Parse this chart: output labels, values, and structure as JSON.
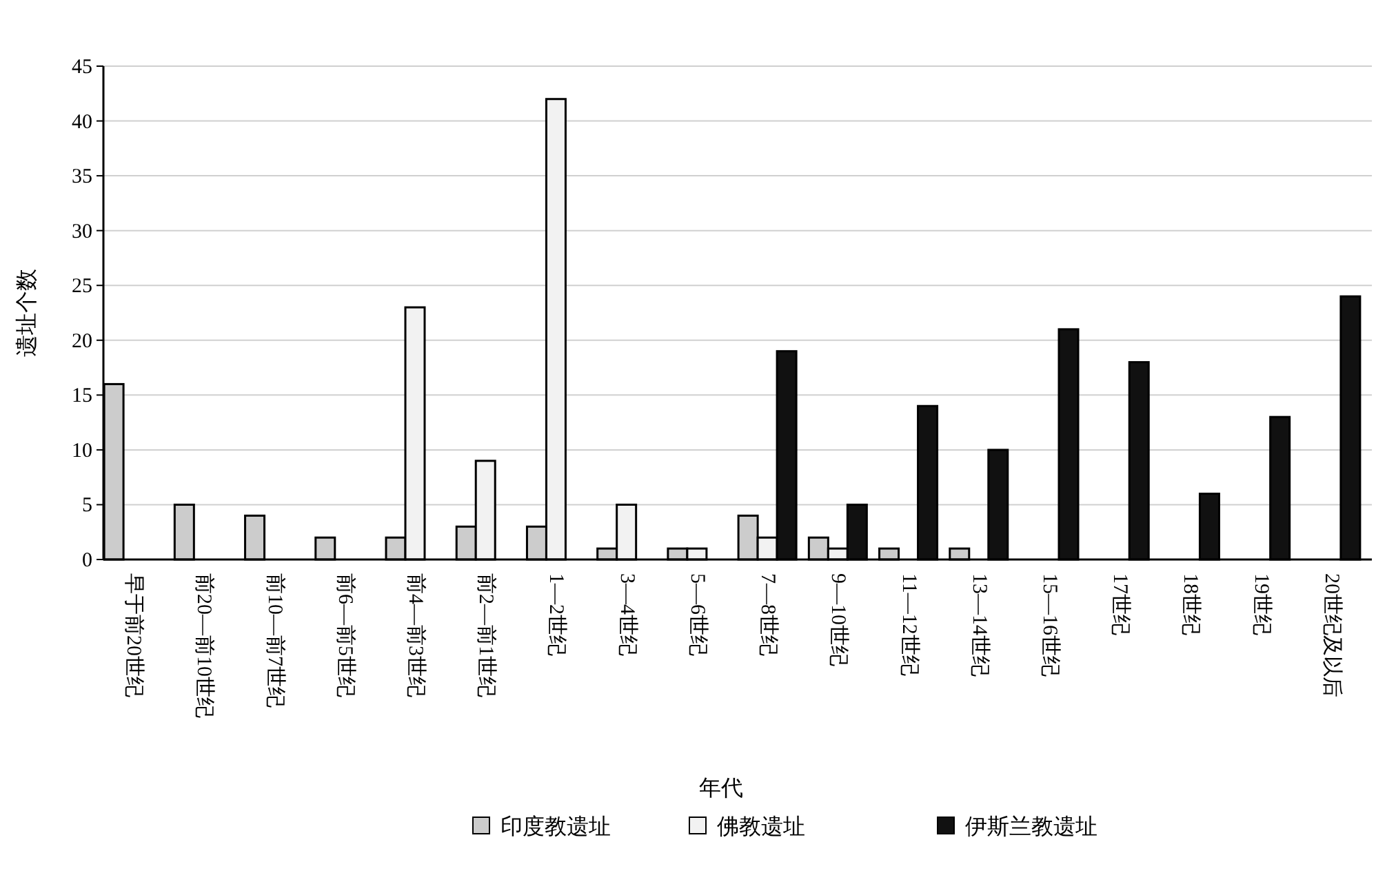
{
  "chart_data": {
    "type": "bar",
    "xlabel": "年代",
    "ylabel": "遗址个数",
    "categories": [
      "早于前20世纪",
      "前20—前10世纪",
      "前10—前7世纪",
      "前6—前5世纪",
      "前4—前3世纪",
      "前2—前1世纪",
      "1—2世纪",
      "3—4世纪",
      "5—6世纪",
      "7—8世纪",
      "9—10世纪",
      "11—12世纪",
      "13—14世纪",
      "15—16世纪",
      "17世纪",
      "18世纪",
      "19世纪",
      "20世纪及以后"
    ],
    "series": [
      {
        "name": "印度教遗址",
        "color": "#cccccc",
        "values": [
          16,
          5,
          4,
          2,
          2,
          3,
          3,
          1,
          1,
          4,
          2,
          1,
          1,
          null,
          null,
          null,
          null,
          null
        ]
      },
      {
        "name": "佛教遗址",
        "color": "#f2f2f2",
        "values": [
          null,
          null,
          null,
          null,
          23,
          9,
          42,
          5,
          1,
          2,
          1,
          null,
          null,
          null,
          null,
          null,
          null,
          null
        ]
      },
      {
        "name": "伊斯兰教遗址",
        "color": "#111111",
        "values": [
          null,
          null,
          null,
          null,
          null,
          null,
          null,
          null,
          null,
          19,
          5,
          14,
          10,
          21,
          18,
          6,
          13,
          24
        ]
      }
    ],
    "ylim": [
      0,
      45
    ],
    "yticks": [
      0,
      5,
      10,
      15,
      20,
      25,
      30,
      35,
      40,
      45
    ],
    "grid": "y",
    "legend": "bottom"
  }
}
